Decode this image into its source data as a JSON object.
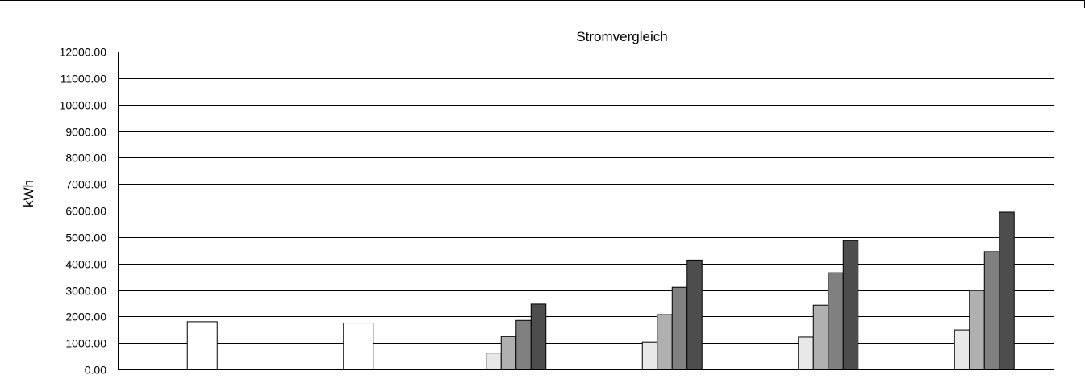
{
  "chart_data": {
    "type": "bar",
    "title": "Stromvergleich",
    "ylabel": "kWh",
    "xlabel": "",
    "ylim": [
      0,
      12000
    ],
    "ytick_step": 1000,
    "ytick_labels": [
      "0.00",
      "1000.00",
      "2000.00",
      "3000.00",
      "4000.00",
      "5000.00",
      "6000.00",
      "7000.00",
      "8000.00",
      "9000.00",
      "10000.00",
      "11000.00",
      "12000.00"
    ],
    "grid": true,
    "legend": "none",
    "categories": [
      "",
      "",
      "",
      "",
      "",
      ""
    ],
    "groups": [
      {
        "bars": [
          {
            "value": 1800,
            "color": "#ffffff"
          }
        ]
      },
      {
        "bars": [
          {
            "value": 1750,
            "color": "#ffffff"
          }
        ]
      },
      {
        "bars": [
          {
            "value": 620,
            "color": "#e8e8e8"
          },
          {
            "value": 1240,
            "color": "#b0b0b0"
          },
          {
            "value": 1850,
            "color": "#808080"
          },
          {
            "value": 2470,
            "color": "#4d4d4d"
          }
        ]
      },
      {
        "bars": [
          {
            "value": 1030,
            "color": "#e8e8e8"
          },
          {
            "value": 2070,
            "color": "#b0b0b0"
          },
          {
            "value": 3100,
            "color": "#808080"
          },
          {
            "value": 4130,
            "color": "#4d4d4d"
          }
        ]
      },
      {
        "bars": [
          {
            "value": 1220,
            "color": "#e8e8e8"
          },
          {
            "value": 2430,
            "color": "#b0b0b0"
          },
          {
            "value": 3650,
            "color": "#808080"
          },
          {
            "value": 4870,
            "color": "#4d4d4d"
          }
        ]
      },
      {
        "bars": [
          {
            "value": 1490,
            "color": "#e8e8e8"
          },
          {
            "value": 2980,
            "color": "#b0b0b0"
          },
          {
            "value": 4450,
            "color": "#808080"
          },
          {
            "value": 5940,
            "color": "#4d4d4d"
          }
        ]
      }
    ]
  }
}
